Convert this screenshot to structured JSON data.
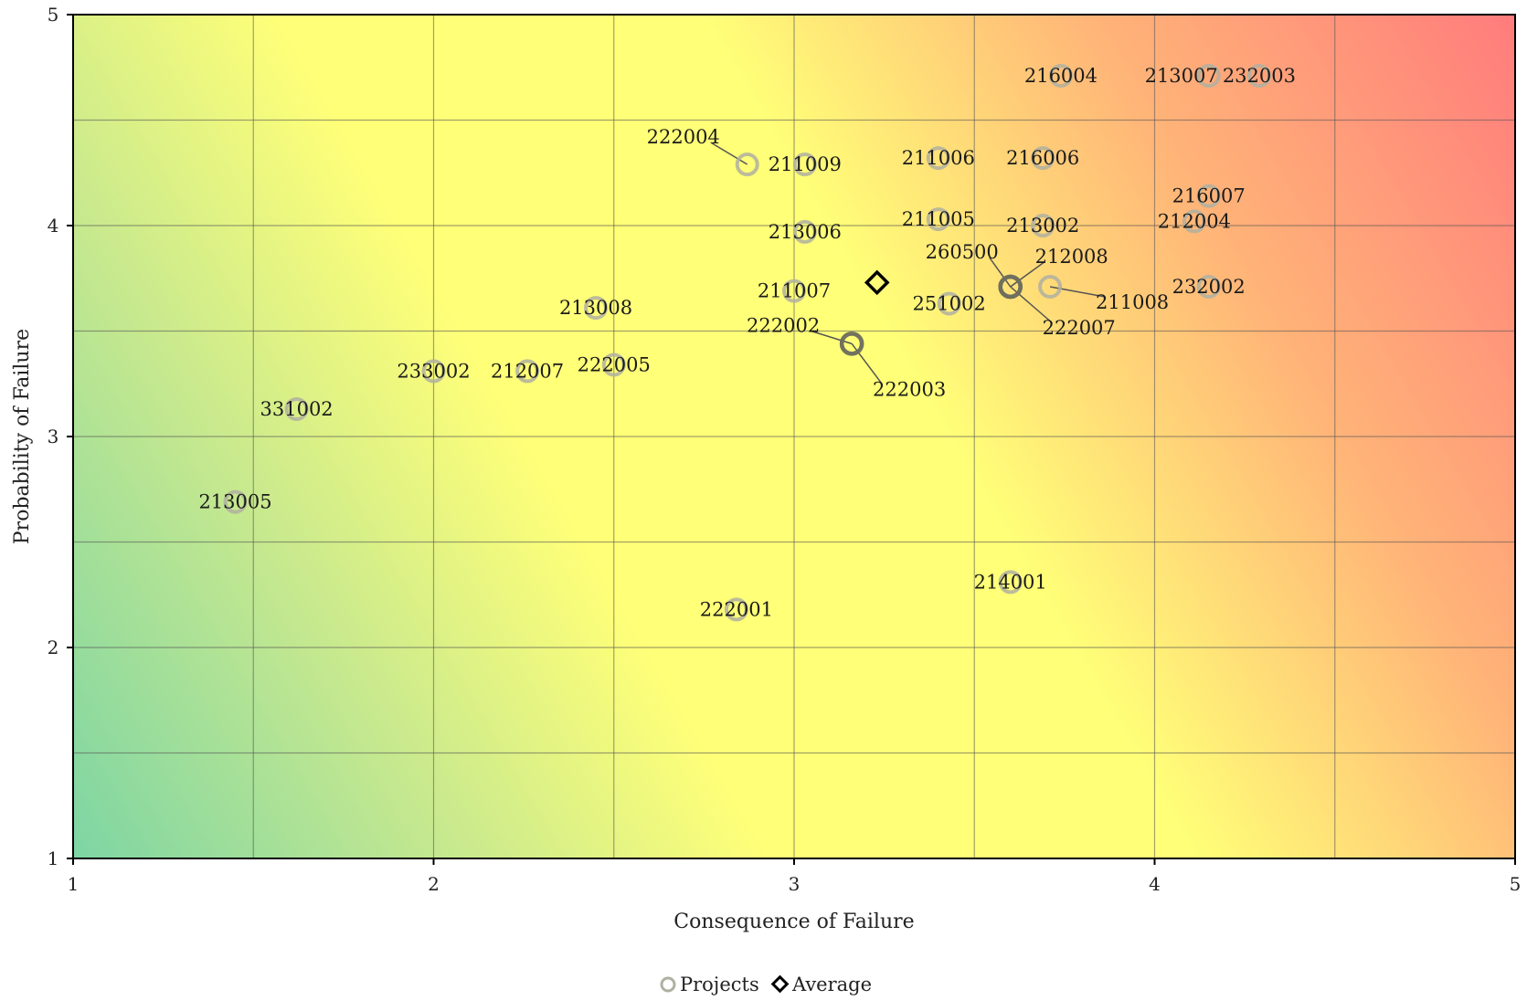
{
  "chart_data": {
    "type": "scatter",
    "xlabel": "Consequence of Failure",
    "ylabel": "Probability of Failure",
    "xlim": [
      1,
      5
    ],
    "ylim": [
      1,
      5
    ],
    "x_ticks": [
      "1",
      "2",
      "3",
      "4",
      "5"
    ],
    "y_ticks": [
      "1",
      "2",
      "3",
      "4",
      "5"
    ],
    "grid": true,
    "background": "risk gradient (green low-low, yellow middle, red high-high)",
    "colors": {
      "low": "#7dd5a4",
      "mid": "#ffff78",
      "high": "#ff7c7c",
      "project": "#b0b0a0",
      "average": "#000000"
    },
    "legend": {
      "position": "bottom-center",
      "items": [
        "Projects",
        "Average"
      ]
    },
    "series": [
      {
        "name": "Projects",
        "marker": "circle-open",
        "points": [
          {
            "label": "216004",
            "x": 3.74,
            "y": 4.71
          },
          {
            "label": "213007",
            "x": 4.15,
            "y": 4.71
          },
          {
            "label": "232003",
            "x": 4.29,
            "y": 4.71
          },
          {
            "label": "222004",
            "x": 2.87,
            "y": 4.29
          },
          {
            "label": "211009",
            "x": 3.03,
            "y": 4.29
          },
          {
            "label": "211006",
            "x": 3.4,
            "y": 4.32
          },
          {
            "label": "216006",
            "x": 3.69,
            "y": 4.32
          },
          {
            "label": "216007",
            "x": 4.15,
            "y": 4.14
          },
          {
            "label": "212004",
            "x": 4.11,
            "y": 4.02
          },
          {
            "label": "211005",
            "x": 3.4,
            "y": 4.03
          },
          {
            "label": "213002",
            "x": 3.69,
            "y": 4.0
          },
          {
            "label": "213006",
            "x": 3.03,
            "y": 3.97
          },
          {
            "label": "260500",
            "x": 3.6,
            "y": 3.71
          },
          {
            "label": "212008",
            "x": 3.6,
            "y": 3.71
          },
          {
            "label": "222007",
            "x": 3.6,
            "y": 3.71
          },
          {
            "label": "211008",
            "x": 3.71,
            "y": 3.71
          },
          {
            "label": "232002",
            "x": 4.15,
            "y": 3.71
          },
          {
            "label": "211007",
            "x": 3.0,
            "y": 3.69
          },
          {
            "label": "251002",
            "x": 3.43,
            "y": 3.63
          },
          {
            "label": "213008",
            "x": 2.45,
            "y": 3.61
          },
          {
            "label": "222002",
            "x": 3.16,
            "y": 3.44
          },
          {
            "label": "222003",
            "x": 3.16,
            "y": 3.44
          },
          {
            "label": "222005",
            "x": 2.5,
            "y": 3.34
          },
          {
            "label": "233002",
            "x": 2.0,
            "y": 3.31
          },
          {
            "label": "212007",
            "x": 2.26,
            "y": 3.31
          },
          {
            "label": "331002",
            "x": 1.62,
            "y": 3.13
          },
          {
            "label": "213005",
            "x": 1.45,
            "y": 2.69
          },
          {
            "label": "214001",
            "x": 3.6,
            "y": 2.31
          },
          {
            "label": "222001",
            "x": 2.84,
            "y": 2.18
          }
        ]
      },
      {
        "name": "Average",
        "marker": "diamond-open",
        "points": [
          {
            "x": 3.23,
            "y": 3.73
          }
        ]
      }
    ]
  }
}
